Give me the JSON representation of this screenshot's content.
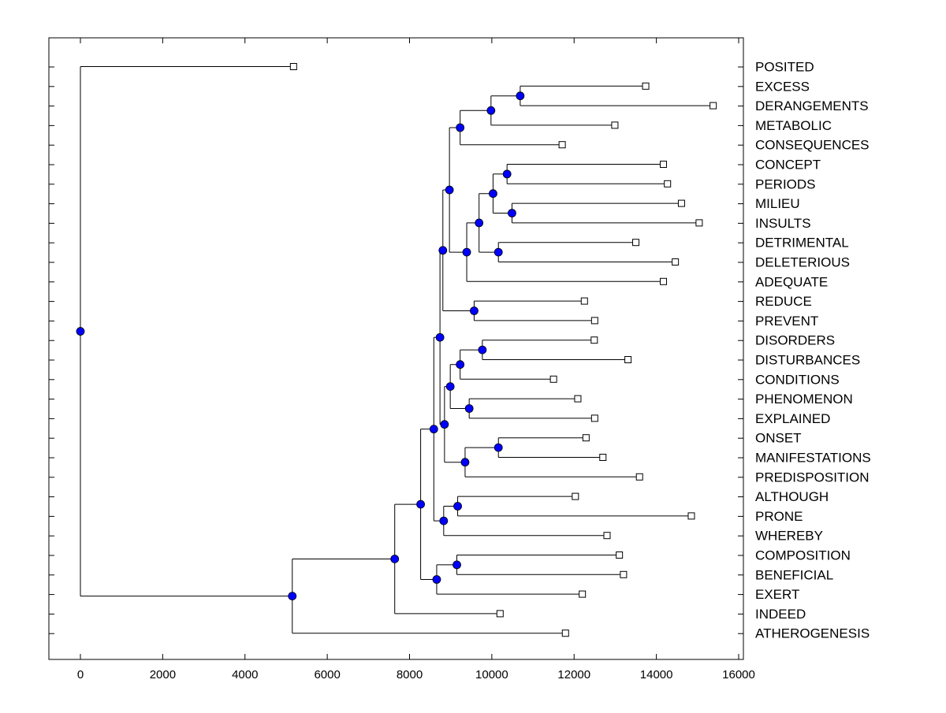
{
  "chart_data": {
    "type": "dendrogram",
    "orientation": "horizontal",
    "xlim": [
      -750,
      16000
    ],
    "xticks": [
      0,
      2000,
      4000,
      6000,
      8000,
      10000,
      12000,
      14000,
      16000
    ],
    "xtick_labels": [
      "0",
      "2000",
      "4000",
      "6000",
      "8000",
      "10000",
      "12000",
      "14000",
      "16000"
    ],
    "grid": false,
    "leaves": [
      {
        "label": "POSITED",
        "x": 5180
      },
      {
        "label": "EXCESS",
        "x": 13740
      },
      {
        "label": "DERANGEMENTS",
        "x": 15380
      },
      {
        "label": "METABOLIC",
        "x": 12990
      },
      {
        "label": "CONSEQUENCES",
        "x": 11710
      },
      {
        "label": "CONCEPT",
        "x": 14170
      },
      {
        "label": "PERIODS",
        "x": 14270
      },
      {
        "label": "MILIEU",
        "x": 14610
      },
      {
        "label": "INSULTS",
        "x": 15040
      },
      {
        "label": "DETRIMENTAL",
        "x": 13500
      },
      {
        "label": "DELETERIOUS",
        "x": 14460
      },
      {
        "label": "ADEQUATE",
        "x": 14170
      },
      {
        "label": "REDUCE",
        "x": 12250
      },
      {
        "label": "PREVENT",
        "x": 12500
      },
      {
        "label": "DISORDERS",
        "x": 12490
      },
      {
        "label": "DISTURBANCES",
        "x": 13310
      },
      {
        "label": "CONDITIONS",
        "x": 11500
      },
      {
        "label": "PHENOMENON",
        "x": 12090
      },
      {
        "label": "EXPLAINED",
        "x": 12500
      },
      {
        "label": "ONSET",
        "x": 12290
      },
      {
        "label": "MANIFESTATIONS",
        "x": 12700
      },
      {
        "label": "PREDISPOSITION",
        "x": 13590
      },
      {
        "label": "ALTHOUGH",
        "x": 12030
      },
      {
        "label": "PRONE",
        "x": 14850
      },
      {
        "label": "WHEREBY",
        "x": 12800
      },
      {
        "label": "COMPOSITION",
        "x": 13100
      },
      {
        "label": "BENEFICIAL",
        "x": 13200
      },
      {
        "label": "EXERT",
        "x": 12200
      },
      {
        "label": "INDEED",
        "x": 10200
      },
      {
        "label": "ATHEROGENESIS",
        "x": 11790
      }
    ],
    "merges": [
      {
        "id": "m1",
        "x": 10690,
        "children": [
          "EXCESS",
          "DERANGEMENTS"
        ]
      },
      {
        "id": "m2",
        "x": 9980,
        "children": [
          "m1",
          "METABOLIC"
        ]
      },
      {
        "id": "m3",
        "x": 9230,
        "children": [
          "m2",
          "CONSEQUENCES"
        ]
      },
      {
        "id": "m4",
        "x": 10370,
        "children": [
          "CONCEPT",
          "PERIODS"
        ]
      },
      {
        "id": "m5",
        "x": 10490,
        "children": [
          "MILIEU",
          "INSULTS"
        ]
      },
      {
        "id": "m6",
        "x": 10030,
        "children": [
          "m4",
          "m5"
        ]
      },
      {
        "id": "m7",
        "x": 10160,
        "children": [
          "DETRIMENTAL",
          "DELETERIOUS"
        ]
      },
      {
        "id": "m8",
        "x": 9690,
        "children": [
          "m6",
          "m7"
        ]
      },
      {
        "id": "m9",
        "x": 9390,
        "children": [
          "m8",
          "ADEQUATE"
        ]
      },
      {
        "id": "m10",
        "x": 8970,
        "children": [
          "m3",
          "m9"
        ]
      },
      {
        "id": "m11",
        "x": 9570,
        "children": [
          "REDUCE",
          "PREVENT"
        ]
      },
      {
        "id": "m12",
        "x": 8810,
        "children": [
          "m10",
          "m11"
        ]
      },
      {
        "id": "m13",
        "x": 9770,
        "children": [
          "DISORDERS",
          "DISTURBANCES"
        ]
      },
      {
        "id": "m14",
        "x": 9230,
        "children": [
          "m13",
          "CONDITIONS"
        ]
      },
      {
        "id": "m15",
        "x": 9450,
        "children": [
          "PHENOMENON",
          "EXPLAINED"
        ]
      },
      {
        "id": "m16",
        "x": 8990,
        "children": [
          "m14",
          "m15"
        ]
      },
      {
        "id": "m17",
        "x": 10160,
        "children": [
          "ONSET",
          "MANIFESTATIONS"
        ]
      },
      {
        "id": "m18",
        "x": 9350,
        "children": [
          "m17",
          "PREDISPOSITION"
        ]
      },
      {
        "id": "m19",
        "x": 8850,
        "children": [
          "m16",
          "m18"
        ]
      },
      {
        "id": "m20",
        "x": 8740,
        "children": [
          "m12",
          "m19"
        ]
      },
      {
        "id": "m21",
        "x": 9170,
        "children": [
          "ALTHOUGH",
          "PRONE"
        ]
      },
      {
        "id": "m22",
        "x": 8830,
        "children": [
          "m21",
          "WHEREBY"
        ]
      },
      {
        "id": "m23",
        "x": 8590,
        "children": [
          "m20",
          "m22"
        ]
      },
      {
        "id": "m24",
        "x": 9150,
        "children": [
          "COMPOSITION",
          "BENEFICIAL"
        ]
      },
      {
        "id": "m25",
        "x": 8660,
        "children": [
          "m24",
          "EXERT"
        ]
      },
      {
        "id": "m26",
        "x": 8270,
        "children": [
          "m23",
          "m25"
        ]
      },
      {
        "id": "m27",
        "x": 7640,
        "children": [
          "m26",
          "INDEED"
        ]
      },
      {
        "id": "m28",
        "x": 5150,
        "children": [
          "m27",
          "ATHEROGENESIS"
        ]
      },
      {
        "id": "m29",
        "x": 0,
        "children": [
          "POSITED",
          "m28"
        ]
      }
    ],
    "colors": {
      "node_fill": "#0000ff",
      "line": "#000000",
      "leaf_marker_fill": "#ffffff"
    }
  }
}
